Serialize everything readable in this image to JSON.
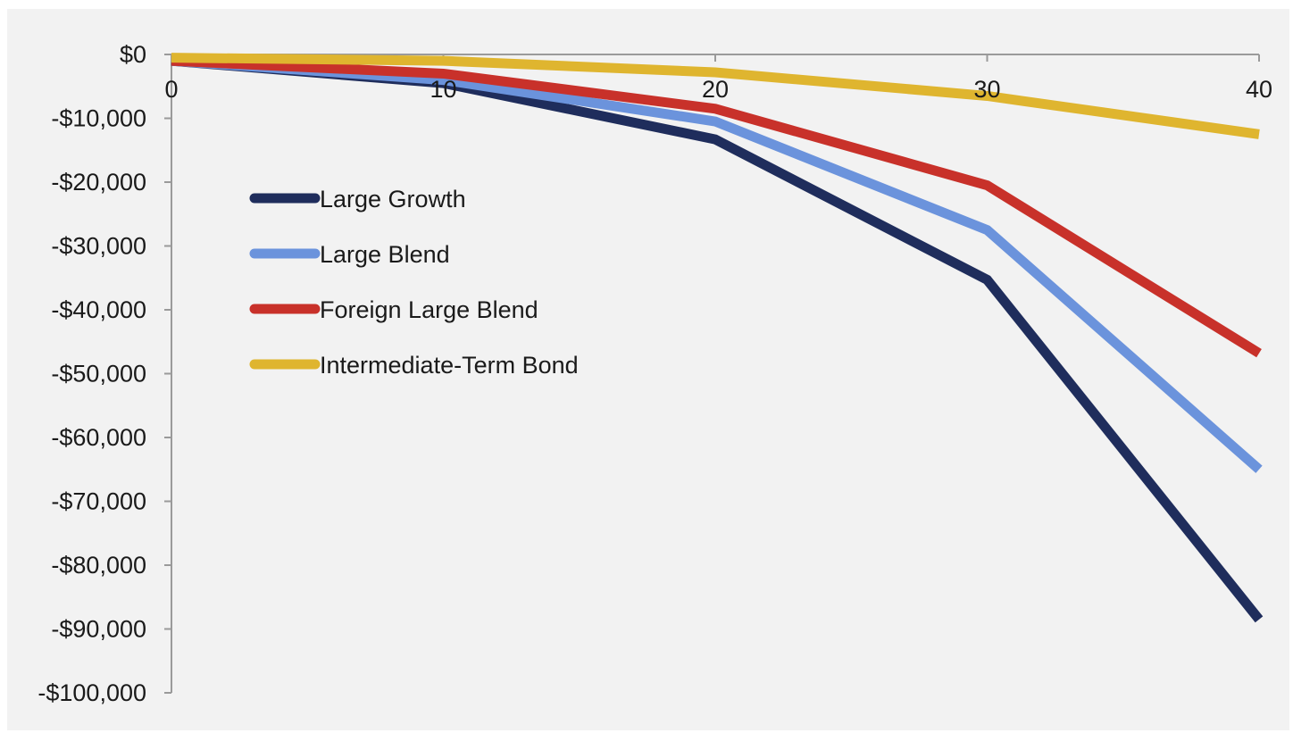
{
  "chart_data": {
    "type": "line",
    "title": "",
    "xlabel": "",
    "ylabel": "",
    "x": [
      0,
      10,
      20,
      30,
      40
    ],
    "xlim": [
      0,
      40
    ],
    "ylim": [
      -100000,
      0
    ],
    "x_ticks": [
      "0",
      "10",
      "20",
      "30",
      "40"
    ],
    "y_ticks": [
      "$0",
      "-$10,000",
      "-$20,000",
      "-$30,000",
      "-$40,000",
      "-$50,000",
      "-$60,000",
      "-$70,000",
      "-$80,000",
      "-$90,000",
      "-$100,000"
    ],
    "y_tick_values": [
      0,
      -10000,
      -20000,
      -30000,
      -40000,
      -50000,
      -60000,
      -70000,
      -80000,
      -90000,
      -100000
    ],
    "grid": false,
    "legend_position": "left",
    "series": [
      {
        "name": "Large Growth",
        "color": "#1f2d5c",
        "values": [
          -1000,
          -4500,
          -13300,
          -35300,
          -88500
        ]
      },
      {
        "name": "Large Blend",
        "color": "#6b93dc",
        "values": [
          -1000,
          -4000,
          -10500,
          -27500,
          -65000
        ]
      },
      {
        "name": "Foreign Large Blend",
        "color": "#c8312a",
        "values": [
          -1000,
          -3000,
          -8500,
          -20500,
          -46800
        ]
      },
      {
        "name": "Intermediate-Term Bond",
        "color": "#dfb52f",
        "values": [
          -500,
          -1000,
          -2800,
          -6500,
          -12500
        ]
      }
    ]
  }
}
